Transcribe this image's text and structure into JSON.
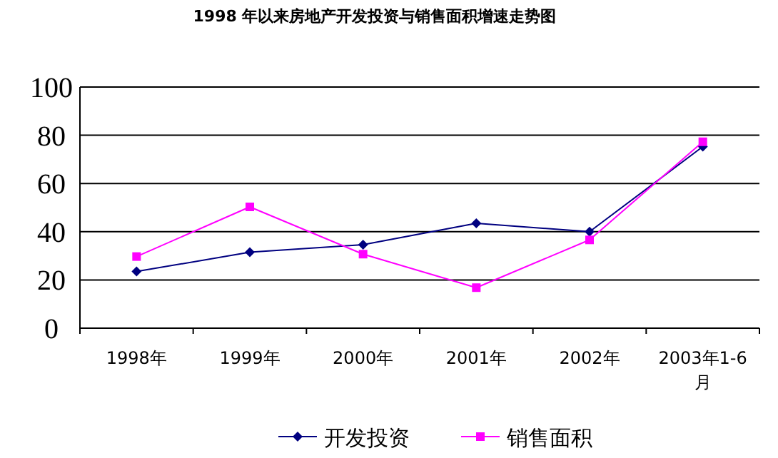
{
  "chart_data": {
    "type": "line",
    "title": "1998 年以来房地产开发投资与销售面积增速走势图",
    "categories": [
      "1998年",
      "1999年",
      "2000年",
      "2001年",
      "2002年",
      "2003年1-6月"
    ],
    "series": [
      {
        "name": "开发投资",
        "color": "#000080",
        "marker": "diamond",
        "values": [
          23.5,
          31.5,
          34.6,
          43.5,
          40,
          75.3
        ]
      },
      {
        "name": "销售面积",
        "color": "#ff00ff",
        "marker": "square",
        "values": [
          29.7,
          50.3,
          30.7,
          16.8,
          36.6,
          77.3
        ]
      }
    ],
    "ylim": [
      0,
      100
    ],
    "yticks": [
      0,
      20,
      40,
      60,
      80,
      100
    ],
    "grid": "y",
    "legend": "bottom",
    "line_style": "solid"
  }
}
